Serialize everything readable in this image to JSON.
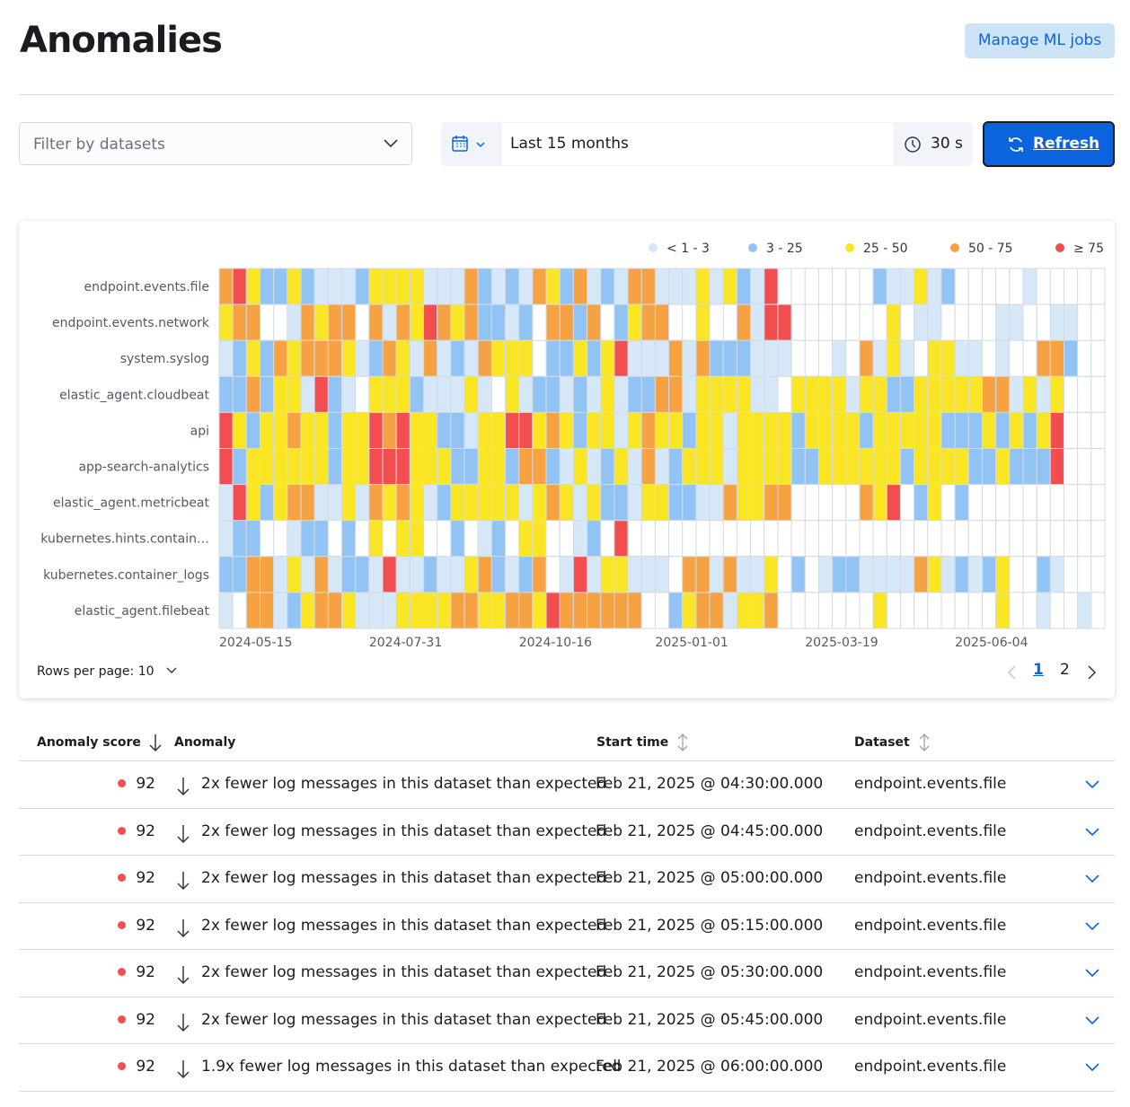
{
  "header": {
    "title": "Anomalies",
    "manage_button": "Manage ML jobs"
  },
  "controls": {
    "dataset_filter": "Filter by datasets",
    "time_range": "Last 15 months",
    "refresh_interval": "30 s",
    "refresh_button": "Refresh"
  },
  "chart_data": {
    "type": "heatmap",
    "legend": [
      {
        "label": "< 1 - 3",
        "color": "#d6e8f7"
      },
      {
        "label": "3 - 25",
        "color": "#91c4f4"
      },
      {
        "label": "25 - 50",
        "color": "#fbe625"
      },
      {
        "label": "50 - 75",
        "color": "#f6a243"
      },
      {
        "label": "≥ 75",
        "color": "#f34e4f"
      }
    ],
    "rows": [
      "endpoint.events.file",
      "endpoint.events.network",
      "system.syslog",
      "elastic_agent.cloudbeat",
      "api",
      "app-search-analytics",
      "elastic_agent.metricbeat",
      "kubernetes.hints.contain…",
      "kubernetes.container_logs",
      "elastic_agent.filebeat"
    ],
    "levels": [
      [
        4,
        5,
        3,
        2,
        2,
        3,
        2,
        1,
        1,
        1,
        2,
        3,
        3,
        3,
        3,
        1,
        1,
        1,
        4,
        2,
        1,
        2,
        1,
        4,
        3,
        2,
        4,
        1,
        2,
        1,
        4,
        4,
        1,
        1,
        1,
        3,
        1,
        3,
        2,
        1,
        5,
        0,
        0,
        0,
        0,
        0,
        0,
        0,
        2,
        1,
        1,
        3,
        1,
        2,
        0,
        0,
        0,
        0,
        0,
        1,
        0,
        0,
        0,
        0,
        0
      ],
      [
        3,
        4,
        4,
        0,
        0,
        1,
        4,
        3,
        4,
        4,
        0,
        4,
        1,
        4,
        3,
        5,
        4,
        3,
        4,
        2,
        2,
        1,
        2,
        0,
        4,
        4,
        2,
        4,
        0,
        2,
        3,
        4,
        4,
        0,
        0,
        3,
        0,
        0,
        4,
        1,
        5,
        5,
        0,
        0,
        0,
        0,
        0,
        0,
        0,
        3,
        0,
        1,
        1,
        0,
        0,
        0,
        0,
        1,
        1,
        0,
        0,
        1,
        1,
        0,
        0
      ],
      [
        1,
        2,
        3,
        2,
        4,
        3,
        4,
        4,
        4,
        3,
        1,
        2,
        4,
        3,
        1,
        4,
        1,
        2,
        1,
        4,
        3,
        3,
        3,
        0,
        2,
        2,
        3,
        2,
        3,
        5,
        1,
        1,
        1,
        4,
        1,
        4,
        2,
        2,
        2,
        1,
        1,
        1,
        0,
        0,
        0,
        1,
        0,
        4,
        1,
        3,
        1,
        0,
        3,
        3,
        1,
        1,
        0,
        1,
        0,
        0,
        4,
        4,
        2,
        0,
        0
      ],
      [
        2,
        2,
        4,
        2,
        3,
        3,
        1,
        5,
        2,
        1,
        0,
        3,
        3,
        3,
        2,
        1,
        1,
        1,
        3,
        1,
        0,
        3,
        1,
        2,
        2,
        1,
        2,
        1,
        3,
        1,
        2,
        2,
        4,
        4,
        1,
        3,
        3,
        3,
        3,
        1,
        1,
        0,
        3,
        3,
        3,
        3,
        1,
        3,
        3,
        2,
        2,
        3,
        3,
        3,
        3,
        3,
        4,
        4,
        1,
        3,
        1,
        3,
        0,
        0,
        0
      ],
      [
        5,
        3,
        2,
        3,
        3,
        4,
        3,
        3,
        2,
        3,
        3,
        5,
        4,
        5,
        3,
        3,
        2,
        2,
        1,
        3,
        3,
        5,
        5,
        3,
        4,
        3,
        2,
        3,
        3,
        1,
        3,
        4,
        3,
        3,
        2,
        3,
        3,
        1,
        3,
        3,
        3,
        3,
        2,
        3,
        3,
        3,
        3,
        2,
        3,
        3,
        3,
        3,
        3,
        2,
        2,
        2,
        3,
        2,
        3,
        2,
        3,
        5,
        0,
        0,
        0
      ],
      [
        5,
        2,
        3,
        3,
        3,
        3,
        3,
        3,
        2,
        3,
        3,
        5,
        5,
        5,
        3,
        3,
        3,
        2,
        2,
        3,
        3,
        2,
        4,
        4,
        2,
        1,
        3,
        1,
        2,
        3,
        1,
        4,
        1,
        2,
        3,
        3,
        3,
        1,
        3,
        3,
        3,
        3,
        2,
        2,
        3,
        3,
        3,
        3,
        3,
        3,
        2,
        3,
        3,
        3,
        3,
        2,
        2,
        3,
        2,
        2,
        2,
        5,
        0,
        0,
        0
      ],
      [
        1,
        5,
        3,
        2,
        3,
        4,
        4,
        1,
        1,
        3,
        1,
        4,
        3,
        4,
        3,
        1,
        2,
        3,
        3,
        3,
        3,
        3,
        1,
        3,
        4,
        3,
        1,
        3,
        2,
        2,
        1,
        3,
        3,
        2,
        2,
        1,
        1,
        4,
        3,
        3,
        4,
        4,
        0,
        0,
        0,
        0,
        0,
        4,
        3,
        5,
        0,
        2,
        3,
        0,
        2,
        0,
        0,
        0,
        0,
        0,
        0,
        0,
        0,
        0,
        0
      ],
      [
        1,
        2,
        2,
        0,
        0,
        1,
        2,
        2,
        0,
        2,
        0,
        3,
        0,
        3,
        3,
        0,
        0,
        2,
        0,
        1,
        2,
        0,
        3,
        3,
        0,
        0,
        1,
        2,
        0,
        5,
        0,
        0,
        0,
        0,
        0,
        0,
        0,
        0,
        0,
        0,
        0,
        0,
        0,
        0,
        0,
        0,
        0,
        0,
        0,
        0,
        0,
        0,
        0,
        0,
        0,
        0,
        0,
        0,
        0,
        0,
        0,
        0,
        0,
        0,
        0
      ],
      [
        2,
        2,
        4,
        4,
        1,
        3,
        1,
        4,
        1,
        2,
        2,
        1,
        5,
        1,
        1,
        2,
        1,
        1,
        3,
        4,
        2,
        1,
        2,
        4,
        0,
        1,
        5,
        1,
        3,
        3,
        1,
        1,
        1,
        0,
        4,
        4,
        1,
        4,
        1,
        1,
        3,
        0,
        2,
        0,
        1,
        2,
        2,
        1,
        1,
        1,
        1,
        4,
        3,
        1,
        2,
        1,
        2,
        3,
        0,
        0,
        2,
        1,
        0,
        0,
        0
      ],
      [
        1,
        0,
        4,
        4,
        1,
        2,
        3,
        4,
        4,
        3,
        1,
        1,
        1,
        3,
        3,
        3,
        3,
        4,
        4,
        3,
        3,
        4,
        4,
        3,
        5,
        4,
        4,
        4,
        4,
        4,
        4,
        0,
        0,
        2,
        3,
        4,
        4,
        1,
        3,
        3,
        4,
        0,
        0,
        0,
        0,
        0,
        0,
        0,
        3,
        0,
        0,
        0,
        0,
        0,
        0,
        0,
        0,
        3,
        0,
        0,
        1,
        0,
        0,
        1,
        0
      ]
    ],
    "x_labels": [
      "2024-05-15",
      "2024-07-31",
      "2024-10-16",
      "2025-01-01",
      "2025-03-19",
      "2025-06-04"
    ]
  },
  "pagination": {
    "rows_per_page": "Rows per page: 10",
    "pages": [
      "1",
      "2"
    ]
  },
  "table": {
    "columns": [
      "Anomaly score",
      "Anomaly",
      "Start time",
      "Dataset"
    ],
    "rows": [
      [
        92,
        "2x fewer log messages in this dataset than expected",
        "Feb 21, 2025 @ 04:30:00.000",
        "endpoint.events.file"
      ],
      [
        92,
        "2x fewer log messages in this dataset than expected",
        "Feb 21, 2025 @ 04:45:00.000",
        "endpoint.events.file"
      ],
      [
        92,
        "2x fewer log messages in this dataset than expected",
        "Feb 21, 2025 @ 05:00:00.000",
        "endpoint.events.file"
      ],
      [
        92,
        "2x fewer log messages in this dataset than expected",
        "Feb 21, 2025 @ 05:15:00.000",
        "endpoint.events.file"
      ],
      [
        92,
        "2x fewer log messages in this dataset than expected",
        "Feb 21, 2025 @ 05:30:00.000",
        "endpoint.events.file"
      ],
      [
        92,
        "2x fewer log messages in this dataset than expected",
        "Feb 21, 2025 @ 05:45:00.000",
        "endpoint.events.file"
      ],
      [
        92,
        "1.9x fewer log messages in this dataset than expected",
        "Feb 21, 2025 @ 06:00:00.000",
        "endpoint.events.file"
      ]
    ]
  }
}
